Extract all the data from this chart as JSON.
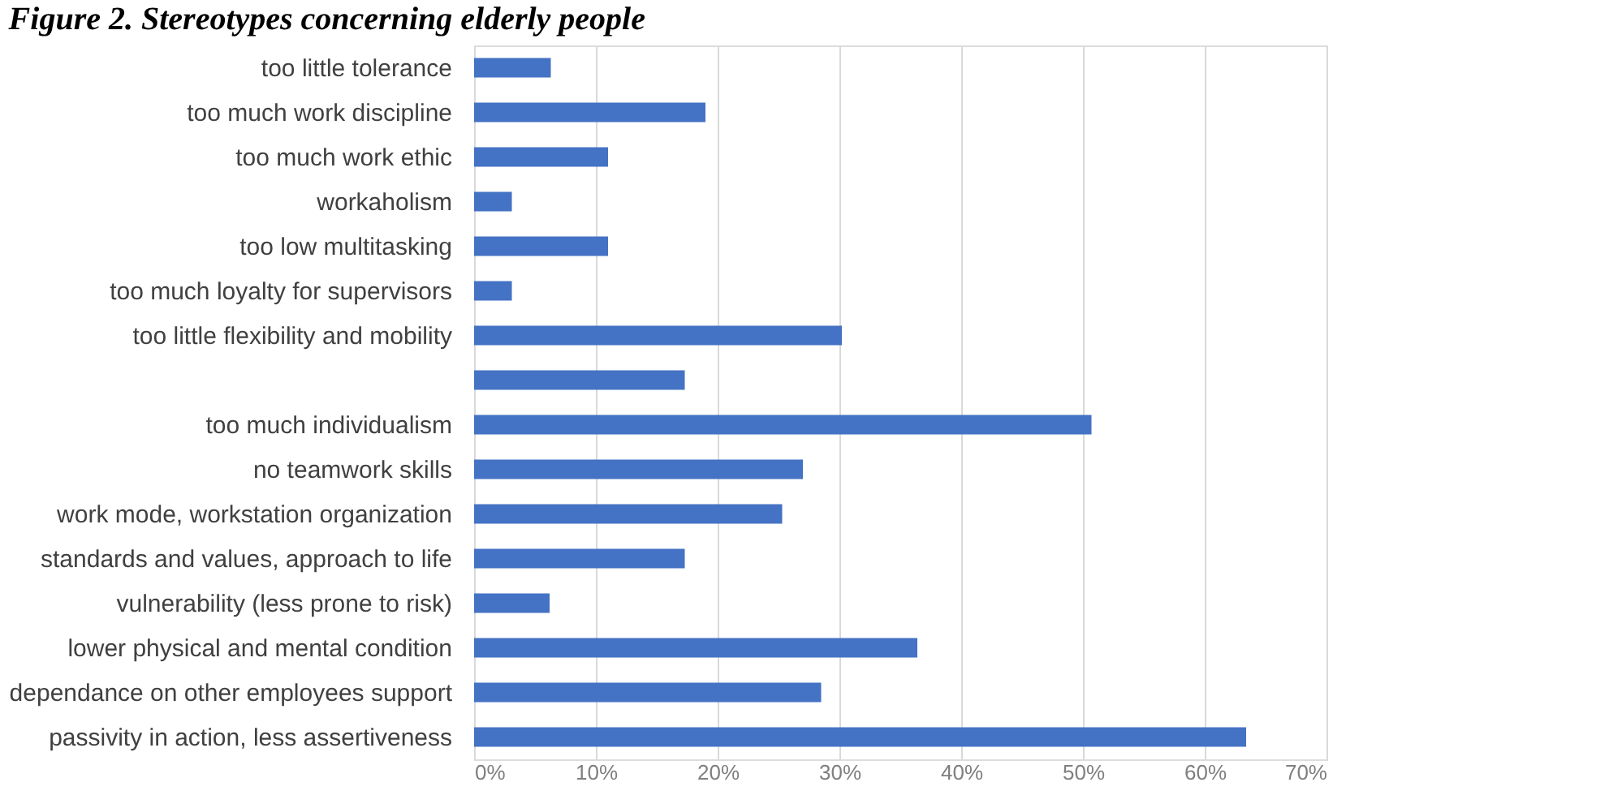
{
  "chart_data": {
    "type": "bar",
    "orientation": "horizontal",
    "title": "Figure 2. Stereotypes concerning elderly people",
    "categories": [
      "too little tolerance",
      "too much work discipline",
      "too much work ethic",
      "workaholism",
      "too low multitasking",
      "too much loyalty for supervisors",
      "too little flexibility and mobility",
      null,
      "too much individualism",
      "no teamwork skills",
      "work mode, workstation organization",
      "standards and values, approach to life",
      "vulnerability (less prone to risk)",
      "lower physical and mental condition",
      "dependance on other employees support",
      "passivity in action, less assertiveness"
    ],
    "values": [
      6.3,
      19.0,
      11.0,
      3.1,
      11.0,
      3.1,
      30.2,
      17.3,
      50.7,
      27.0,
      25.3,
      17.3,
      6.2,
      36.4,
      28.5,
      63.4
    ],
    "color": "#4472c4",
    "xlim": [
      0,
      70
    ],
    "xticks": [
      {
        "value": 0,
        "label": "0%"
      },
      {
        "value": 10,
        "label": "10%"
      },
      {
        "value": 20,
        "label": "20%"
      },
      {
        "value": 30,
        "label": "30%"
      },
      {
        "value": 40,
        "label": "40%"
      },
      {
        "value": 50,
        "label": "50%"
      },
      {
        "value": 60,
        "label": "60%"
      },
      {
        "value": 70,
        "label": "70%"
      }
    ],
    "grid": "x"
  }
}
